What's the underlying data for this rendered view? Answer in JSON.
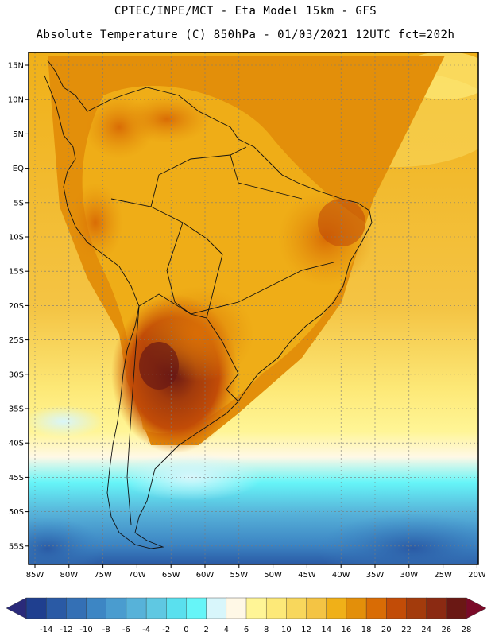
{
  "header": {
    "line1": "CPTEC/INPE/MCT -  Eta Model 15km - GFS",
    "line2": "Absolute Temperature (C) 850hPa - 01/03/2021 12UTC fct=202h"
  },
  "map": {
    "lat_labels": [
      "15N",
      "10N",
      "5N",
      "EQ",
      "5S",
      "10S",
      "15S",
      "20S",
      "25S",
      "30S",
      "35S",
      "40S",
      "45S",
      "50S",
      "55S"
    ],
    "lon_labels": [
      "85W",
      "80W",
      "75W",
      "70W",
      "65W",
      "60W",
      "55W",
      "50W",
      "45W",
      "40W",
      "35W",
      "30W",
      "25W",
      "20W"
    ]
  },
  "colorbar": {
    "labels": [
      "-14",
      "-12",
      "-10",
      "-8",
      "-6",
      "-4",
      "-2",
      "0",
      "2",
      "4",
      "6",
      "8",
      "10",
      "12",
      "14",
      "16",
      "18",
      "20",
      "22",
      "24",
      "26",
      "28"
    ],
    "colors": [
      "#1f3f8f",
      "#2a5aa5",
      "#3470b5",
      "#3d86c4",
      "#4a9ccf",
      "#57b2d9",
      "#5fc8e2",
      "#5ae0ee",
      "#66f5f8",
      "#d8f6fb",
      "#fff8e6",
      "#fff596",
      "#fde978",
      "#f8d75c",
      "#f4c444",
      "#f0b018",
      "#e38f0a",
      "#d96c05",
      "#c24c07",
      "#a33b0c",
      "#8b2a12",
      "#6a1814"
    ],
    "left_cap": "#2a2a7a",
    "right_cap": "#7a0a28"
  }
}
